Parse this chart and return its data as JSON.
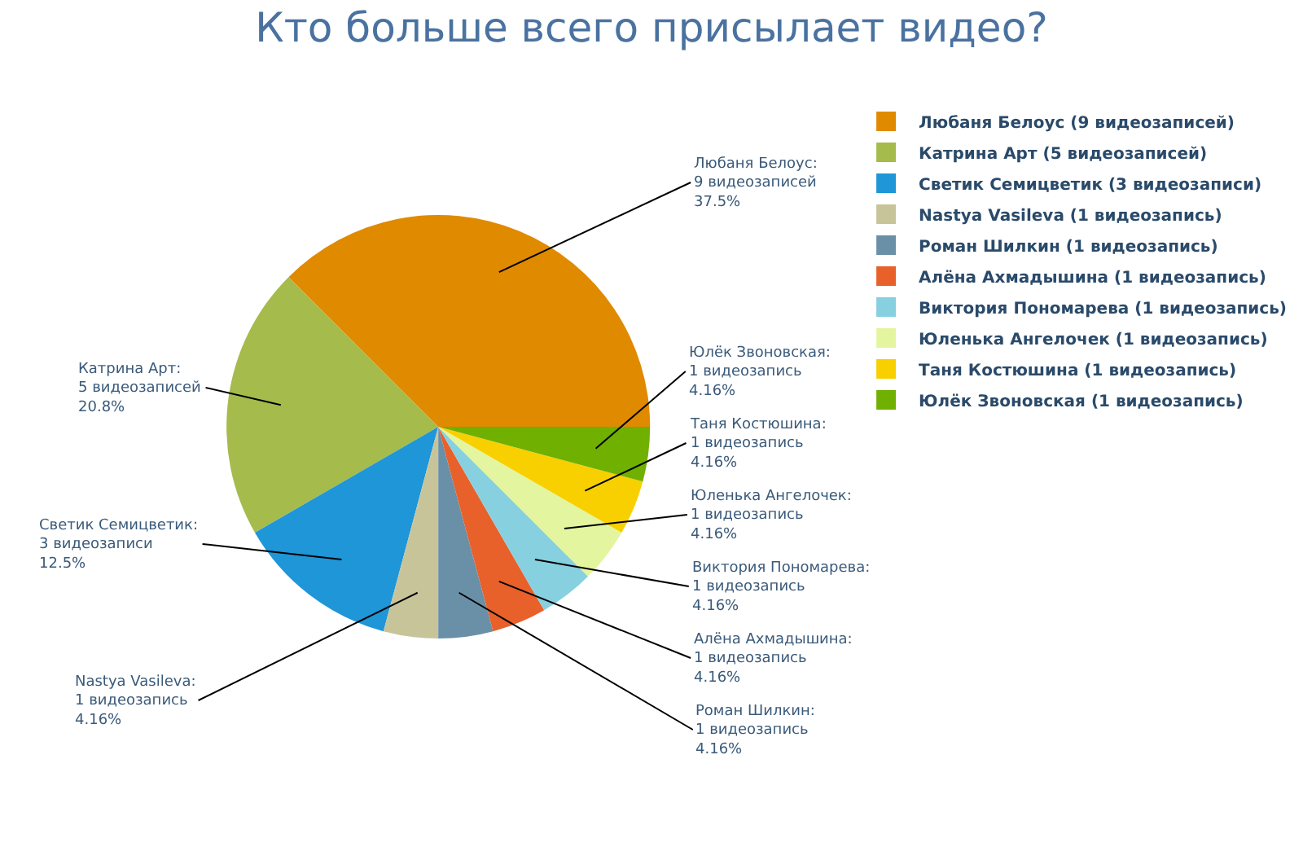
{
  "chart_data": {
    "type": "pie",
    "title": "Кто больше всего присылает видео?",
    "categories": [
      "Любаня Белоус (9 видеозаписей)",
      "Катрина Арт (5 видеозаписей)",
      "Светик Семицветик (3 видеозаписи)",
      "Nastya Vasileva (1 видеозапись)",
      "Роман Шилкин (1 видеозапись)",
      "Алёна Ахмадышина (1 видеозапись)",
      "Виктория Пономарева (1 видеозапись)",
      "Юленька Ангелочек (1 видеозапись)",
      "Таня Костюшина (1 видеозапись)",
      "Юлёк Звоновская (1 видеозапись)"
    ],
    "values": [
      9,
      5,
      3,
      1,
      1,
      1,
      1,
      1,
      1,
      1
    ],
    "colors": [
      "#e08a00",
      "#a5bb4c",
      "#1e96d8",
      "#c8c49a",
      "#6a90a8",
      "#e8602a",
      "#86d0e0",
      "#e4f5a0",
      "#f8d000",
      "#70b000"
    ],
    "value_labels": [
      "Любаня Белоус:\n9 видеозаписей\n37.5%",
      "Катрина Арт:\n5 видеозаписей\n20.8%",
      "Светик Семицветик:\n3 видеозаписи\n12.5%",
      "Nastya Vasileva:\n1 видеозапись\n4.16%",
      "Роман Шилкин:\n1 видеозапись\n4.16%",
      "Алёна Ахмадышина:\n1 видеозапись\n4.16%",
      "Виктория Пономарева:\n1 видеозапись\n4.16%",
      "Юленька Ангелочек:\n1 видеозапись\n4.16%",
      "Таня Костюшина:\n1 видеозапись\n4.16%",
      "Юлёк Звоновская:\n1 видеозапись\n4.16%"
    ],
    "legend": "top right"
  }
}
